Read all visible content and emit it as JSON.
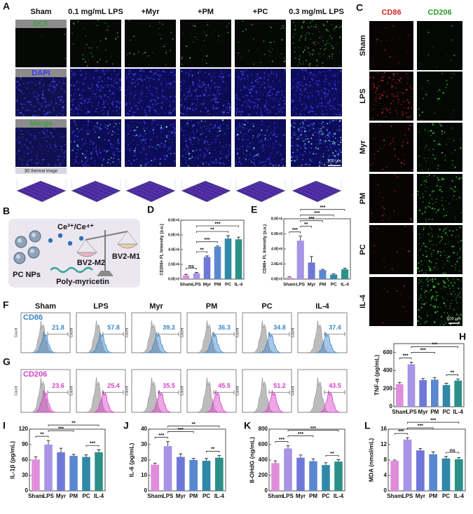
{
  "panel_a": {
    "letter": "A",
    "columns": [
      "Sham",
      "0.1 mg/mL LPS",
      "+Myr",
      "+PM",
      "+PC",
      "0.3 mg/mL LPS"
    ],
    "rows": [
      "DCF",
      "DAPI",
      "Merge"
    ],
    "row_colors": [
      "#3f9f3f",
      "#3535ff",
      "#3f9f3f"
    ],
    "thermal_label": "3D thermal image",
    "scale_bar": "100 μm"
  },
  "panel_b": {
    "letter": "B",
    "ions": "Ce³⁺/Ce⁴⁺",
    "nanoparticles": "PC NPs",
    "polymer": "Poly-myricetin",
    "m2": "BV2-M2",
    "m1": "BV2-M1"
  },
  "panel_c": {
    "letter": "C",
    "columns": [
      "CD86",
      "CD206"
    ],
    "column_colors": [
      "#d62a2a",
      "#2a9a2a"
    ],
    "rows": [
      "Sham",
      "LPS",
      "Myr",
      "PM",
      "PC",
      "IL-4"
    ],
    "scale_bar": "100 μm"
  },
  "flow": {
    "groups": [
      "Sham",
      "LPS",
      "Myr",
      "PM",
      "PC",
      "IL-4"
    ],
    "ylabel": "Count",
    "rows": [
      {
        "letter": "F",
        "marker": "CD86",
        "color": "#3a86c8",
        "percentages": [
          21.8,
          57.8,
          39.3,
          36.3,
          34.8,
          37.4
        ]
      },
      {
        "letter": "G",
        "marker": "CD206",
        "color": "#d63fc6",
        "percentages": [
          23.6,
          25.4,
          35.5,
          45.5,
          51.2,
          43.5
        ]
      }
    ]
  },
  "chart_data": [
    {
      "type": "bar",
      "panel": "D",
      "ylabel": "CD206+ FL Intensity (a.u.)",
      "categories": [
        "Sham",
        "LPS",
        "Myr",
        "PM",
        "PC",
        "IL-4"
      ],
      "values": [
        500000,
        800000,
        3000000,
        4400000,
        5500000,
        5400000
      ],
      "errors": [
        150000,
        100000,
        150000,
        100000,
        400000,
        300000
      ],
      "colors": [
        "#e08ddb",
        "#a694e6",
        "#6f78d9",
        "#5a88d0",
        "#2f88a8",
        "#2b9088"
      ],
      "ylim": [
        0,
        8000000
      ],
      "yticks": [
        {
          "value": 0,
          "label": "0.0E+0"
        },
        {
          "value": 2000000,
          "label": "2.0E+6"
        },
        {
          "value": 4000000,
          "label": "4.0E+6"
        },
        {
          "value": 6000000,
          "label": "6.0E+6"
        },
        {
          "value": 8000000,
          "label": "8.0E+6"
        }
      ],
      "brackets": [
        {
          "between": [
            "Sham",
            "LPS"
          ],
          "label": "ns"
        },
        {
          "between": [
            "LPS",
            "Myr"
          ],
          "label": "**"
        },
        {
          "between": [
            "LPS",
            "PM"
          ],
          "label": "***"
        },
        {
          "between": [
            "LPS",
            "PC"
          ],
          "label": "**"
        },
        {
          "between": [
            "LPS",
            "IL-4"
          ],
          "label": "***"
        }
      ]
    },
    {
      "type": "bar",
      "panel": "E",
      "ylabel": "CD86+ FL Intensity (a.u.)",
      "categories": [
        "Sham",
        "LPS",
        "Myr",
        "PM",
        "PC",
        "IL-4"
      ],
      "values": [
        200000,
        5100000,
        2200000,
        1200000,
        600000,
        1300000
      ],
      "errors": [
        100000,
        600000,
        800000,
        100000,
        100000,
        150000
      ],
      "colors": [
        "#e08ddb",
        "#a694e6",
        "#6f78d9",
        "#5a88d0",
        "#2f88a8",
        "#2b9088"
      ],
      "ylim": [
        0,
        8000000
      ],
      "yticks": [
        {
          "value": 0,
          "label": "0.0E+0"
        },
        {
          "value": 2000000,
          "label": "2.0E+6"
        },
        {
          "value": 4000000,
          "label": "4.0E+6"
        },
        {
          "value": 6000000,
          "label": "6.0E+6"
        },
        {
          "value": 8000000,
          "label": "8.0E+6"
        }
      ],
      "brackets": [
        {
          "between": [
            "Sham",
            "LPS"
          ],
          "label": "***"
        },
        {
          "between": [
            "LPS",
            "Myr"
          ],
          "label": "**"
        },
        {
          "between": [
            "LPS",
            "PM"
          ],
          "label": "***"
        },
        {
          "between": [
            "LPS",
            "PC"
          ],
          "label": "***"
        },
        {
          "between": [
            "LPS",
            "IL-4"
          ],
          "label": "***"
        }
      ]
    },
    {
      "type": "bar",
      "panel": "H",
      "ylabel": "TNF-α (pg/mL)",
      "categories": [
        "Sham",
        "LPS",
        "Myr",
        "PM",
        "PC",
        "IL-4"
      ],
      "values": [
        250,
        470,
        295,
        300,
        240,
        290
      ],
      "errors": [
        20,
        25,
        18,
        25,
        20,
        18
      ],
      "colors": [
        "#e08ddb",
        "#a694e6",
        "#6f78d9",
        "#5a88d0",
        "#2f88a8",
        "#2b9088"
      ],
      "ylim": [
        0,
        700
      ],
      "yticks": [
        0,
        200,
        400,
        600
      ],
      "brackets": [
        {
          "between": [
            "Sham",
            "LPS"
          ],
          "label": "***"
        },
        {
          "between": [
            "PC",
            "IL-4"
          ],
          "label": "**"
        },
        {
          "between": [
            "LPS",
            "PM"
          ],
          "label": "***"
        },
        {
          "between": [
            "LPS",
            "IL-4"
          ],
          "label": "***"
        }
      ]
    },
    {
      "type": "bar",
      "panel": "I",
      "ylabel": "IL-1β (pg/mL)",
      "categories": [
        "Sham",
        "LPS",
        "Myr",
        "PM",
        "PC",
        "IL-4"
      ],
      "values": [
        61,
        90,
        75,
        68,
        66,
        75
      ],
      "errors": [
        5,
        8,
        8,
        3,
        4,
        5
      ],
      "colors": [
        "#e08ddb",
        "#a694e6",
        "#6f78d9",
        "#5a88d0",
        "#2f88a8",
        "#2b9088"
      ],
      "ylim": [
        0,
        120
      ],
      "yticks": [
        0,
        30,
        60,
        90,
        120
      ],
      "brackets": [
        {
          "between": [
            "Sham",
            "LPS"
          ],
          "label": "**"
        },
        {
          "between": [
            "PC",
            "IL-4"
          ],
          "label": "***"
        },
        {
          "between": [
            "LPS",
            "PM"
          ],
          "label": "***"
        },
        {
          "between": [
            "LPS",
            "IL-4"
          ],
          "label": "**"
        }
      ]
    },
    {
      "type": "bar",
      "panel": "J",
      "ylabel": "IL-6 (pg/mL)",
      "categories": [
        "Sham",
        "LPS",
        "Myr",
        "PM",
        "PC",
        "IL-4"
      ],
      "values": [
        17,
        29,
        22,
        20,
        19.5,
        21.5
      ],
      "errors": [
        1,
        3,
        2,
        1,
        1.5,
        1.5
      ],
      "colors": [
        "#e08ddb",
        "#a694e6",
        "#6f78d9",
        "#5a88d0",
        "#2f88a8",
        "#2b9088"
      ],
      "ylim": [
        0,
        40
      ],
      "yticks": [
        0,
        10,
        20,
        30,
        40
      ],
      "brackets": [
        {
          "between": [
            "Sham",
            "LPS"
          ],
          "label": "***"
        },
        {
          "between": [
            "PC",
            "IL-4"
          ],
          "label": "**"
        },
        {
          "between": [
            "LPS",
            "PM"
          ],
          "label": "***"
        },
        {
          "between": [
            "LPS",
            "IL-4"
          ],
          "label": "**"
        }
      ]
    },
    {
      "type": "bar",
      "panel": "K",
      "ylabel": "8-OHdG (ng/mL)",
      "categories": [
        "Sham",
        "LPS",
        "Myr",
        "PM",
        "PC",
        "IL-4"
      ],
      "values": [
        360,
        550,
        430,
        385,
        335,
        380
      ],
      "errors": [
        30,
        35,
        35,
        30,
        30,
        25
      ],
      "colors": [
        "#e08ddb",
        "#a694e6",
        "#6f78d9",
        "#5a88d0",
        "#2f88a8",
        "#2b9088"
      ],
      "ylim": [
        0,
        800
      ],
      "yticks": [
        0,
        200,
        400,
        600,
        800
      ],
      "brackets": [
        {
          "between": [
            "Sham",
            "LPS"
          ],
          "label": "***"
        },
        {
          "between": [
            "PC",
            "IL-4"
          ],
          "label": "**"
        },
        {
          "between": [
            "LPS",
            "PM"
          ],
          "label": "***"
        },
        {
          "between": [
            "LPS",
            "IL-4"
          ],
          "label": "***"
        }
      ]
    },
    {
      "type": "bar",
      "panel": "L",
      "ylabel": "MDA (nmol/mL)",
      "categories": [
        "Sham",
        "LPS",
        "Myr",
        "PM",
        "PC",
        "IL-4"
      ],
      "values": [
        7.8,
        13.3,
        10.5,
        9.5,
        8.4,
        8.2
      ],
      "errors": [
        0.2,
        0.5,
        0.5,
        0.6,
        0.5,
        0.4
      ],
      "colors": [
        "#e08ddb",
        "#a694e6",
        "#6f78d9",
        "#5a88d0",
        "#2f88a8",
        "#2b9088"
      ],
      "ylim": [
        0,
        16
      ],
      "yticks": [
        0,
        4,
        8,
        12,
        16
      ],
      "brackets": [
        {
          "between": [
            "Sham",
            "LPS"
          ],
          "label": "***"
        },
        {
          "between": [
            "PC",
            "IL-4"
          ],
          "label": "ns"
        },
        {
          "between": [
            "LPS",
            "PM"
          ],
          "label": "***"
        },
        {
          "between": [
            "LPS",
            "IL-4"
          ],
          "label": "***"
        }
      ]
    }
  ]
}
